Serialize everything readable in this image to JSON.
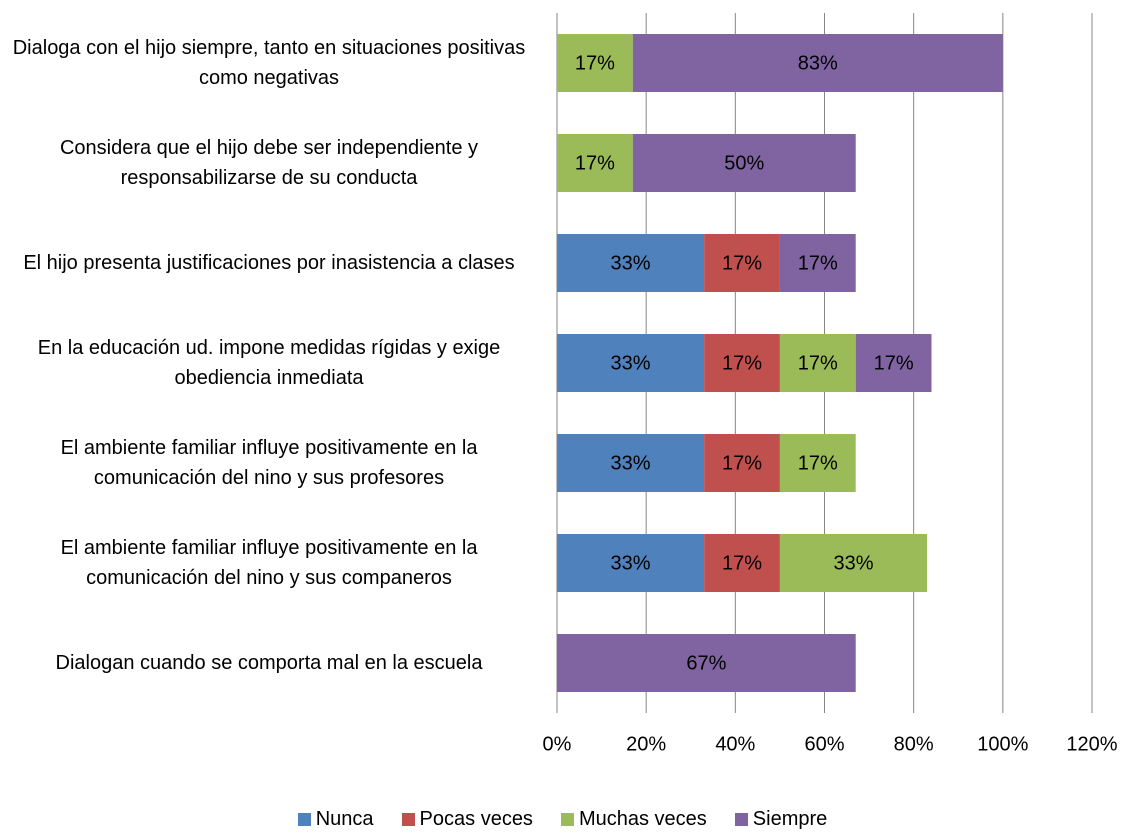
{
  "chart_data": {
    "type": "stacked-barh",
    "categories": [
      "Dialoga con el hijo siempre, tanto en situaciones positivas como negativas",
      "Considera que el hijo debe ser independiente y responsabilizarse de su conducta",
      "El hijo presenta justificaciones por inasistencia a clases",
      "En la educación ud. impone medidas rígidas y exige obediencia inmediata",
      "El ambiente familiar influye positivamente en la comunicación del nino y sus profesores",
      "El ambiente familiar influye positivamente en la comunicación del nino y sus companeros",
      "Dialogan cuando se comporta mal en la escuela"
    ],
    "series": [
      {
        "name": "Nunca",
        "color": "#4f81bd",
        "values": [
          null,
          null,
          33,
          33,
          33,
          33,
          null
        ],
        "value_labels": [
          null,
          null,
          "33%",
          "33%",
          "33%",
          "33%",
          null
        ]
      },
      {
        "name": "Pocas veces",
        "color": "#c0504d",
        "values": [
          null,
          null,
          17,
          17,
          17,
          17,
          null
        ],
        "value_labels": [
          null,
          null,
          "17%",
          "17%",
          "17%",
          "17%",
          null
        ]
      },
      {
        "name": "Muchas veces",
        "color": "#9bbb59",
        "values": [
          17,
          17,
          null,
          17,
          17,
          33,
          null
        ],
        "value_labels": [
          "17%",
          "17%",
          null,
          "17%",
          "17%",
          "33%",
          null
        ]
      },
      {
        "name": "Siempre",
        "color": "#8064a2",
        "values": [
          83,
          50,
          17,
          17,
          null,
          null,
          67
        ],
        "value_labels": [
          "83%",
          "50%",
          "17%",
          "17%",
          null,
          null,
          "67%"
        ]
      }
    ],
    "xlim": [
      0,
      120
    ],
    "xticks": [
      {
        "value": 0,
        "label": "0%"
      },
      {
        "value": 20,
        "label": "20%"
      },
      {
        "value": 40,
        "label": "40%"
      },
      {
        "value": 60,
        "label": "60%"
      },
      {
        "value": 80,
        "label": "80%"
      },
      {
        "value": 100,
        "label": "100%"
      },
      {
        "value": 120,
        "label": "120%"
      }
    ],
    "grid": true,
    "legend": "bottom"
  }
}
